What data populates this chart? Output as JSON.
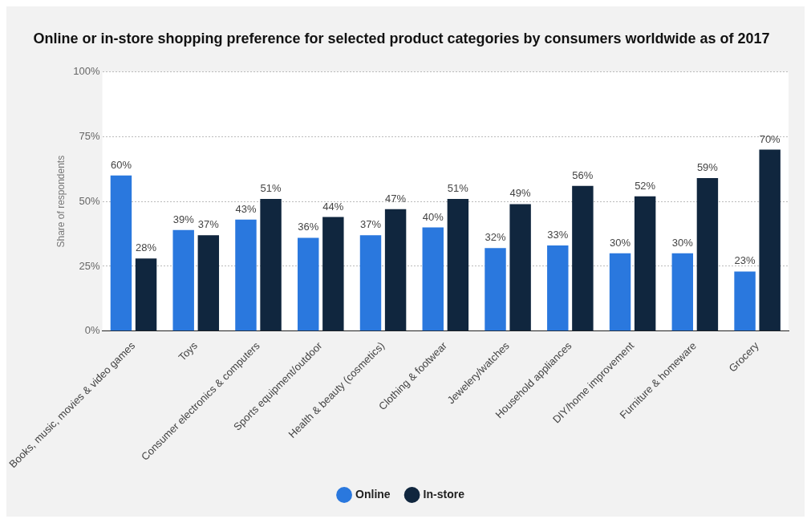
{
  "chart_data": {
    "type": "bar",
    "title": "Online or in-store shopping preference for selected product categories by consumers worldwide as of 2017",
    "ylabel": "Share of respondents",
    "categories": [
      "Books, music, movies & video games",
      "Toys",
      "Consumer electronics & computers",
      "Sports equipment/outdoor",
      "Health & beauty (cosmetics)",
      "Clothing & footwear",
      "Jewelery/watches",
      "Household appliances",
      "DIY/home improvement",
      "Furniture & homeware",
      "Grocery"
    ],
    "series": [
      {
        "name": "Online",
        "color": "#2a78de",
        "values": [
          60,
          39,
          43,
          36,
          37,
          40,
          32,
          33,
          30,
          30,
          23
        ],
        "value_labels": [
          "60%",
          "39%",
          "43%",
          "36%",
          "37%",
          "40%",
          "32%",
          "33%",
          "30%",
          "30%",
          "23%"
        ]
      },
      {
        "name": "In-store",
        "color": "#10263e",
        "values": [
          28,
          37,
          51,
          44,
          47,
          51,
          49,
          56,
          52,
          59,
          70
        ],
        "value_labels": [
          "28%",
          "37%",
          "51%",
          "44%",
          "47%",
          "51%",
          "49%",
          "56%",
          "52%",
          "59%",
          "70%"
        ]
      }
    ],
    "ylim": [
      0,
      100
    ],
    "yticks": [
      {
        "value": 0,
        "label": "0%"
      },
      {
        "value": 25,
        "label": "25%"
      },
      {
        "value": 50,
        "label": "50%"
      },
      {
        "value": 75,
        "label": "75%"
      },
      {
        "value": 100,
        "label": "100%"
      }
    ],
    "grid": "y",
    "legend": "bottom"
  }
}
